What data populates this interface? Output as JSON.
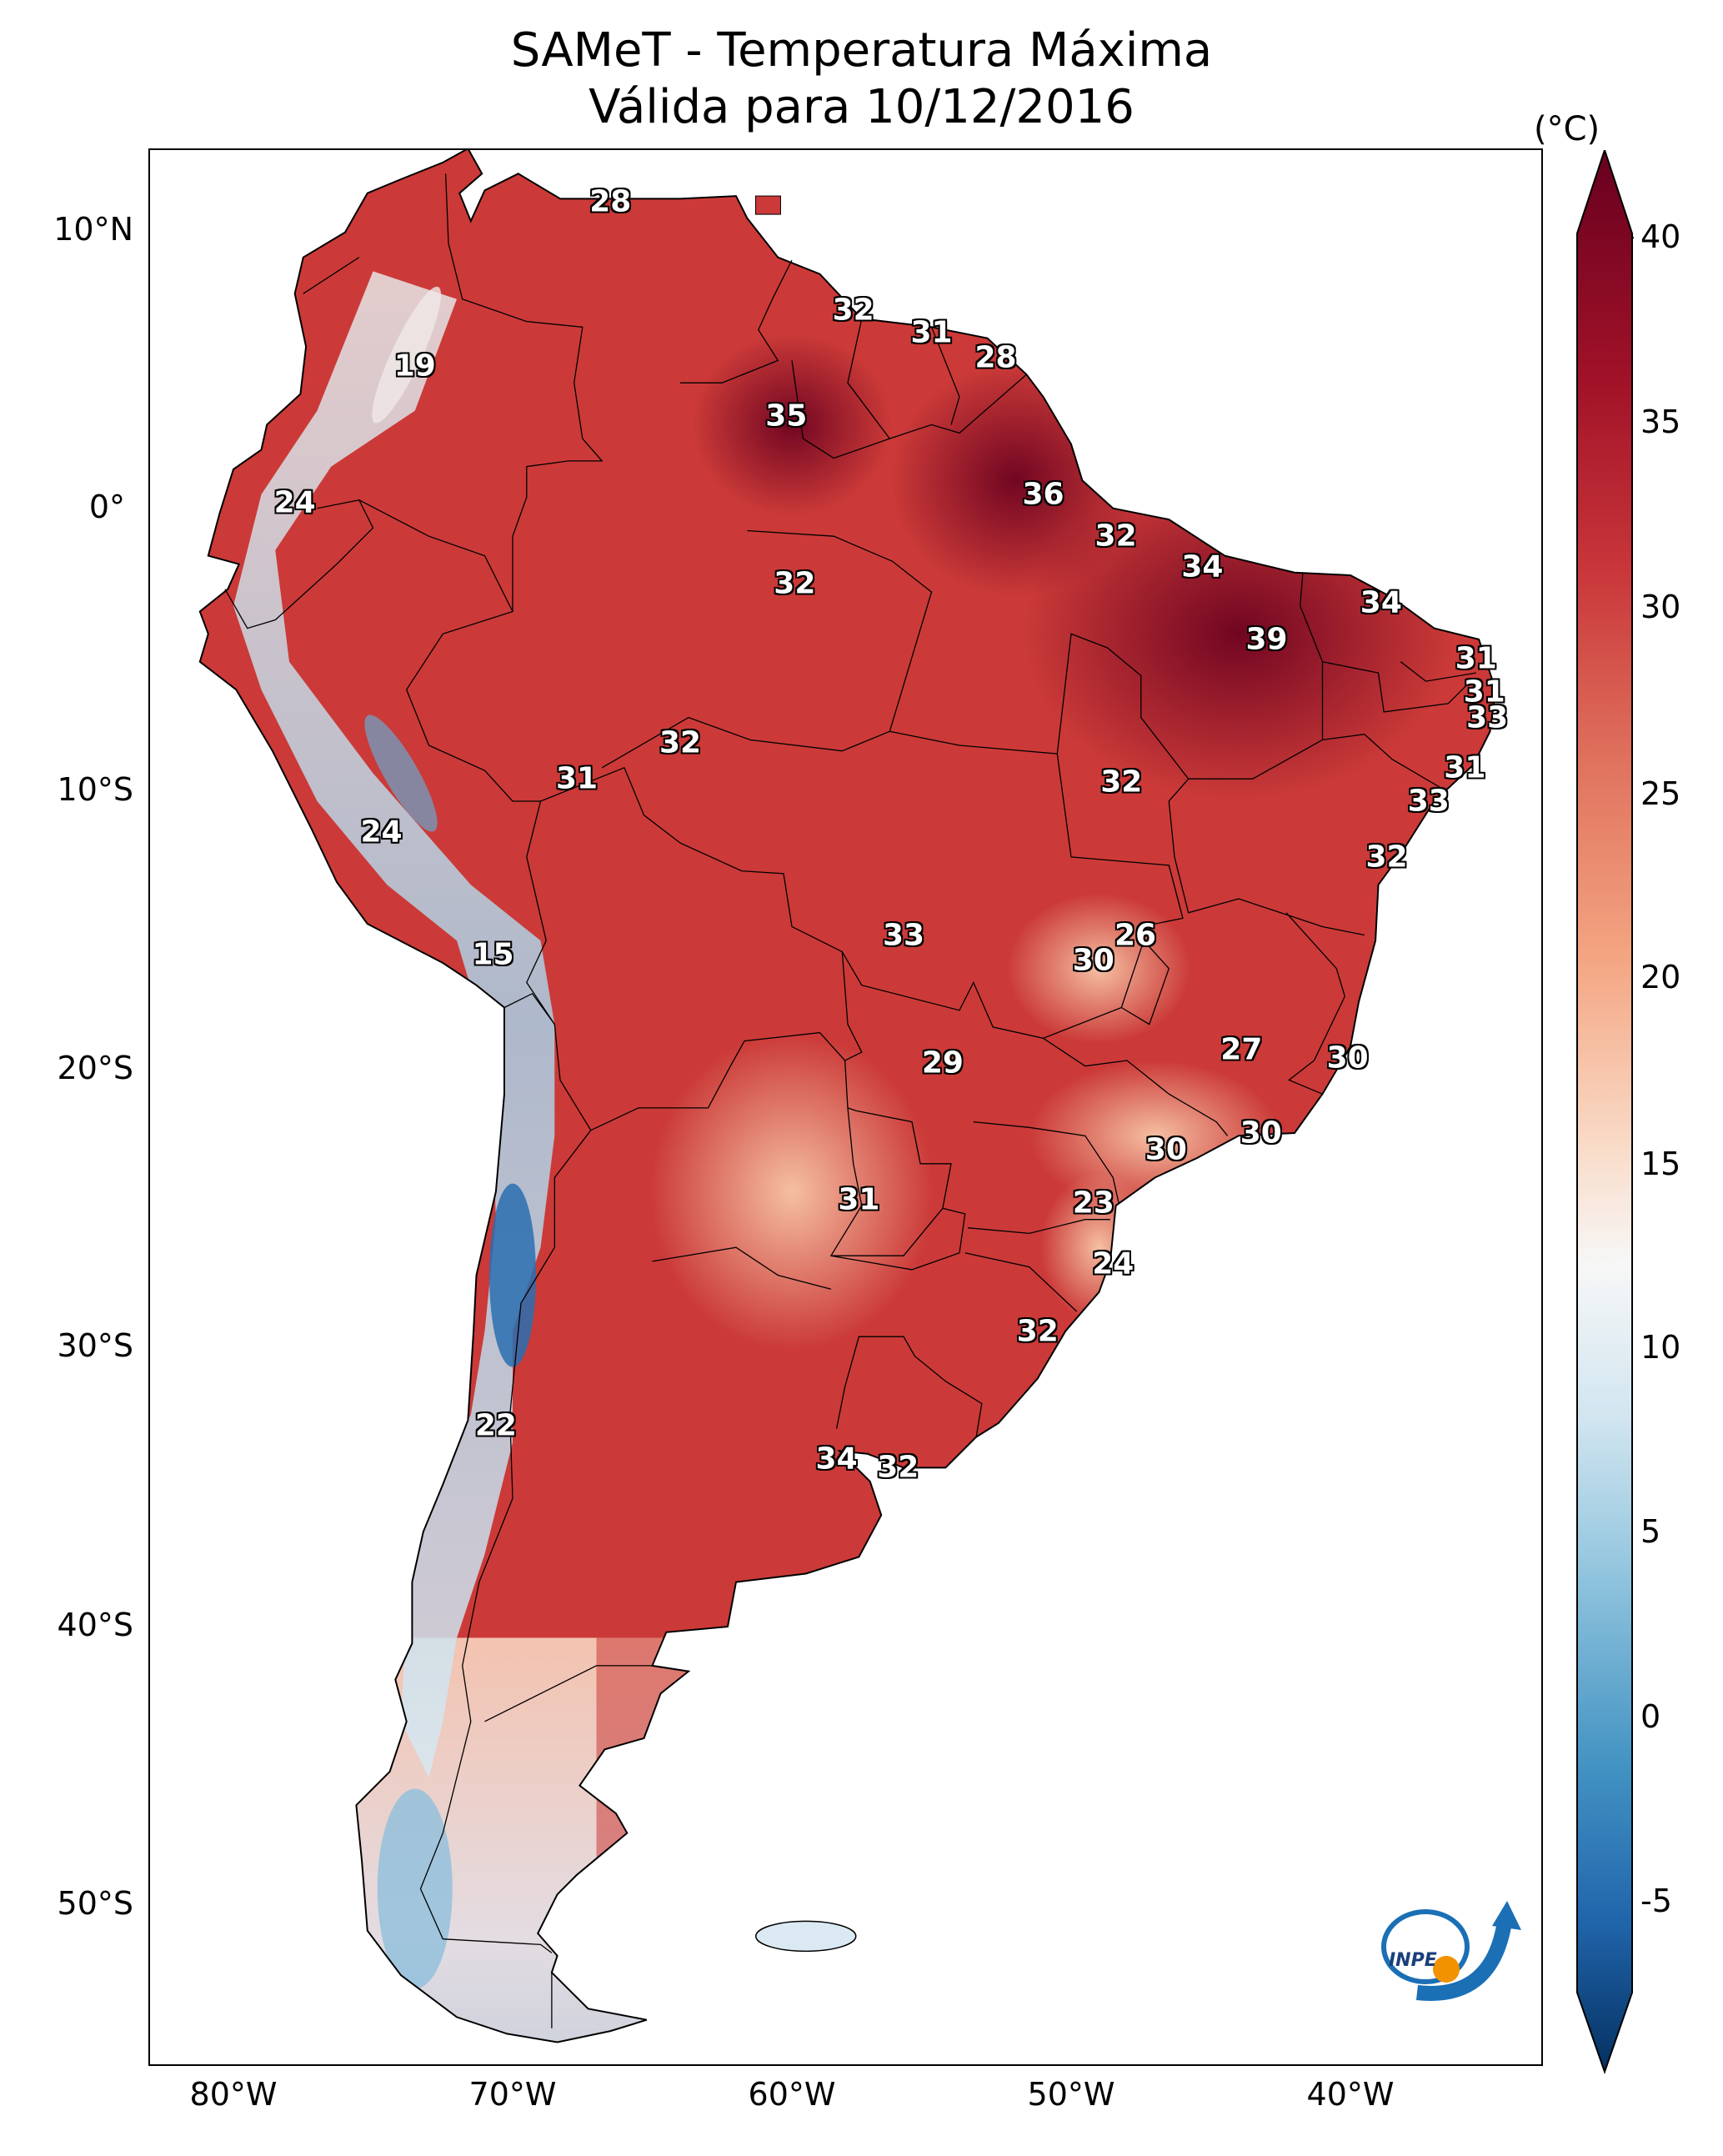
{
  "title": {
    "line1": "SAMeT - Temperatura Máxima",
    "line2": "Válida para 10/12/2016"
  },
  "colorbar": {
    "unit": "(°C)",
    "ticks": [
      "40",
      "35",
      "30",
      "25",
      "20",
      "15",
      "10",
      "5",
      "0",
      "-5"
    ],
    "min": -7,
    "max": 42,
    "colors": {
      "hot": "#67001f",
      "warm": "#c9373a",
      "mild": "#f4a582",
      "neutral": "#f7f7f7",
      "cool": "#92c5de",
      "cold": "#2166ac",
      "coldest": "#053061"
    }
  },
  "axes": {
    "lat_labels": [
      "10°N",
      "0°",
      "10°S",
      "20°S",
      "30°S",
      "40°S",
      "50°S"
    ],
    "lon_labels": [
      "80°W",
      "70°W",
      "60°W",
      "50°W",
      "40°W"
    ]
  },
  "temperature_labels": [
    {
      "lon": -66.5,
      "lat": 10.5,
      "text": "28"
    },
    {
      "lon": -57.8,
      "lat": 6.6,
      "text": "32"
    },
    {
      "lon": -55.0,
      "lat": 5.8,
      "text": "31"
    },
    {
      "lon": -52.7,
      "lat": 4.9,
      "text": "28"
    },
    {
      "lon": -73.5,
      "lat": 4.6,
      "text": "19"
    },
    {
      "lon": -60.2,
      "lat": 2.8,
      "text": "35"
    },
    {
      "lon": -51.0,
      "lat": 0.0,
      "text": "36"
    },
    {
      "lon": -77.8,
      "lat": -0.3,
      "text": "24"
    },
    {
      "lon": -48.4,
      "lat": -1.5,
      "text": "32"
    },
    {
      "lon": -45.3,
      "lat": -2.6,
      "text": "34"
    },
    {
      "lon": -59.9,
      "lat": -3.2,
      "text": "32"
    },
    {
      "lon": -38.9,
      "lat": -3.9,
      "text": "34"
    },
    {
      "lon": -43.0,
      "lat": -5.2,
      "text": "39"
    },
    {
      "lon": -35.5,
      "lat": -5.9,
      "text": "31"
    },
    {
      "lon": -35.2,
      "lat": -7.1,
      "text": "31"
    },
    {
      "lon": -35.1,
      "lat": -8.0,
      "text": "33"
    },
    {
      "lon": -64.0,
      "lat": -8.9,
      "text": "32"
    },
    {
      "lon": -35.9,
      "lat": -9.8,
      "text": "31"
    },
    {
      "lon": -67.7,
      "lat": -10.2,
      "text": "31"
    },
    {
      "lon": -48.2,
      "lat": -10.3,
      "text": "32"
    },
    {
      "lon": -37.2,
      "lat": -11.0,
      "text": "33"
    },
    {
      "lon": -74.7,
      "lat": -12.1,
      "text": "24"
    },
    {
      "lon": -38.7,
      "lat": -13.0,
      "text": "32"
    },
    {
      "lon": -56.0,
      "lat": -15.8,
      "text": "33"
    },
    {
      "lon": -47.7,
      "lat": -15.8,
      "text": "26"
    },
    {
      "lon": -49.2,
      "lat": -16.7,
      "text": "30"
    },
    {
      "lon": -70.7,
      "lat": -16.5,
      "text": "15"
    },
    {
      "lon": -43.9,
      "lat": -19.9,
      "text": "27"
    },
    {
      "lon": -40.1,
      "lat": -20.2,
      "text": "30"
    },
    {
      "lon": -54.6,
      "lat": -20.4,
      "text": "29"
    },
    {
      "lon": -43.2,
      "lat": -22.9,
      "text": "30"
    },
    {
      "lon": -46.6,
      "lat": -23.5,
      "text": "30"
    },
    {
      "lon": -57.6,
      "lat": -25.3,
      "text": "31"
    },
    {
      "lon": -49.2,
      "lat": -25.4,
      "text": "23"
    },
    {
      "lon": -48.5,
      "lat": -27.6,
      "text": "24"
    },
    {
      "lon": -51.2,
      "lat": -30.0,
      "text": "32"
    },
    {
      "lon": -70.6,
      "lat": -33.4,
      "text": "22"
    },
    {
      "lon": -58.4,
      "lat": -34.6,
      "text": "34"
    },
    {
      "lon": -56.2,
      "lat": -34.9,
      "text": "32"
    }
  ]
}
